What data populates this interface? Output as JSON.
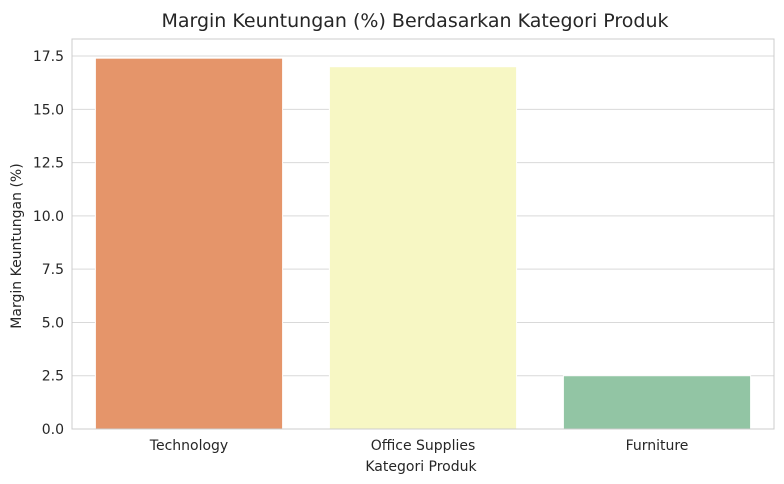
{
  "chart_data": {
    "type": "bar",
    "title": "Margin Keuntungan (%) Berdasarkan Kategori Produk",
    "xlabel": "Kategori Produk",
    "ylabel": "Margin Keuntungan (%)",
    "categories": [
      "Technology",
      "Office Supplies",
      "Furniture"
    ],
    "values": [
      17.4,
      17.0,
      2.5
    ],
    "colors": [
      "#e5956a",
      "#f7f7c4",
      "#92c5a4"
    ],
    "ylim": [
      0,
      18.3
    ],
    "yticks": [
      "0.0",
      "2.5",
      "5.0",
      "7.5",
      "10.0",
      "12.5",
      "15.0",
      "17.5"
    ],
    "grid": true,
    "legend": "none"
  }
}
